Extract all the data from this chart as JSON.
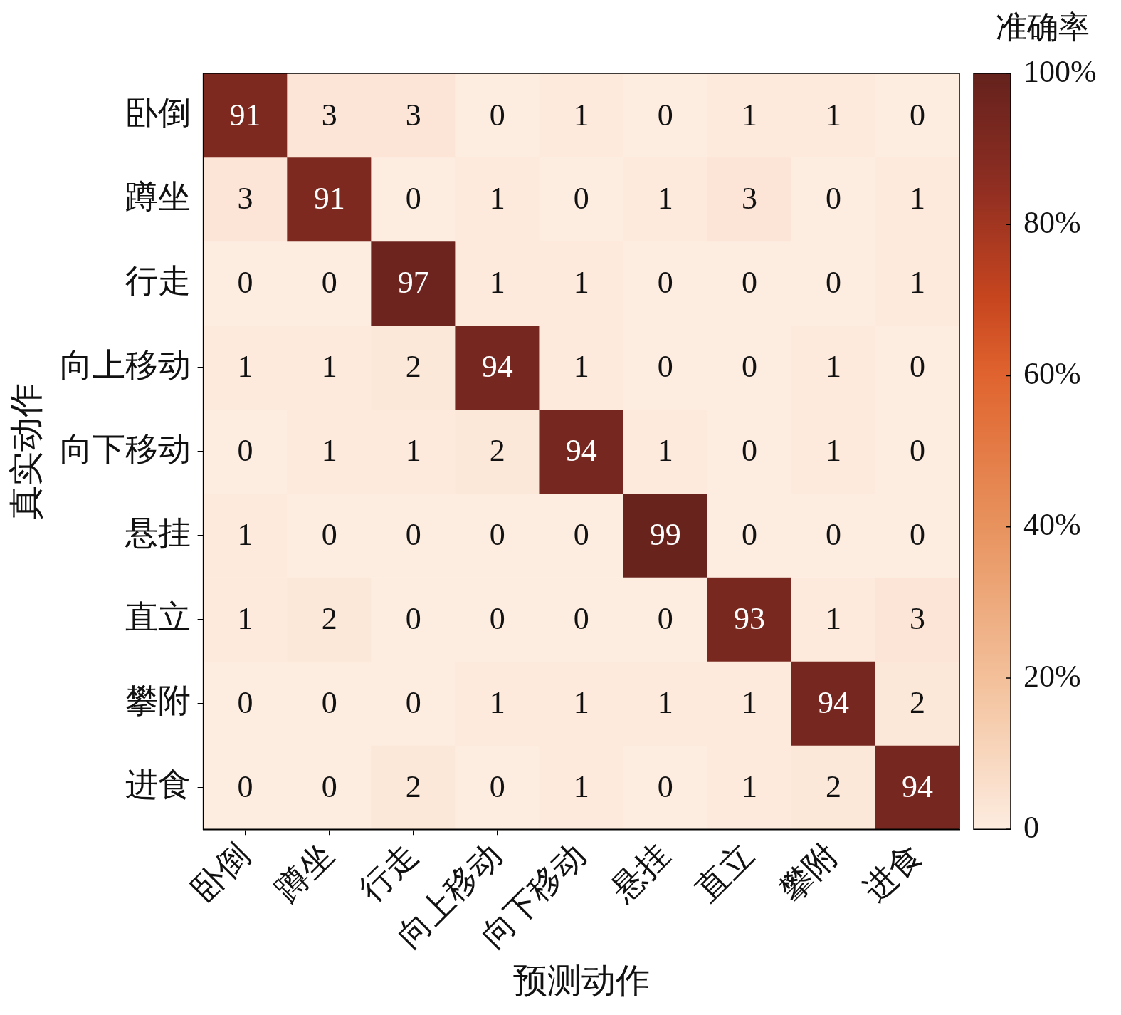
{
  "chart_data": {
    "type": "heatmap",
    "xlabel": "预测动作",
    "ylabel": "真实动作",
    "clabel": "准确率",
    "categories": [
      "卧倒",
      "蹲坐",
      "行走",
      "向上移动",
      "向下移动",
      "悬挂",
      "直立",
      "攀附",
      "进食"
    ],
    "y_categories": [
      "卧倒",
      "蹲坐",
      "行走",
      "向上移动",
      "向下移动",
      "悬挂",
      "直立",
      "攀附",
      "进食"
    ],
    "cells": [
      [
        91,
        3,
        3,
        0,
        1,
        0,
        1,
        1,
        0
      ],
      [
        3,
        91,
        0,
        1,
        0,
        1,
        3,
        0,
        1
      ],
      [
        0,
        0,
        97,
        1,
        1,
        0,
        0,
        0,
        1
      ],
      [
        1,
        1,
        2,
        94,
        1,
        0,
        0,
        1,
        0
      ],
      [
        0,
        1,
        1,
        2,
        94,
        1,
        0,
        1,
        0
      ],
      [
        1,
        0,
        0,
        0,
        0,
        99,
        0,
        0,
        0
      ],
      [
        1,
        2,
        0,
        0,
        0,
        0,
        93,
        1,
        3
      ],
      [
        0,
        0,
        0,
        1,
        1,
        1,
        1,
        94,
        2
      ],
      [
        0,
        0,
        2,
        0,
        1,
        0,
        1,
        2,
        94
      ]
    ],
    "clim": [
      0,
      100
    ],
    "cticks": [
      0,
      {
        "value": 20,
        "label": "20%"
      },
      {
        "value": 40,
        "label": "40%"
      },
      {
        "value": 60,
        "label": "60%"
      },
      {
        "value": 80,
        "label": "80%"
      },
      {
        "value": 100,
        "label": "100%"
      }
    ],
    "data_labels": true
  }
}
